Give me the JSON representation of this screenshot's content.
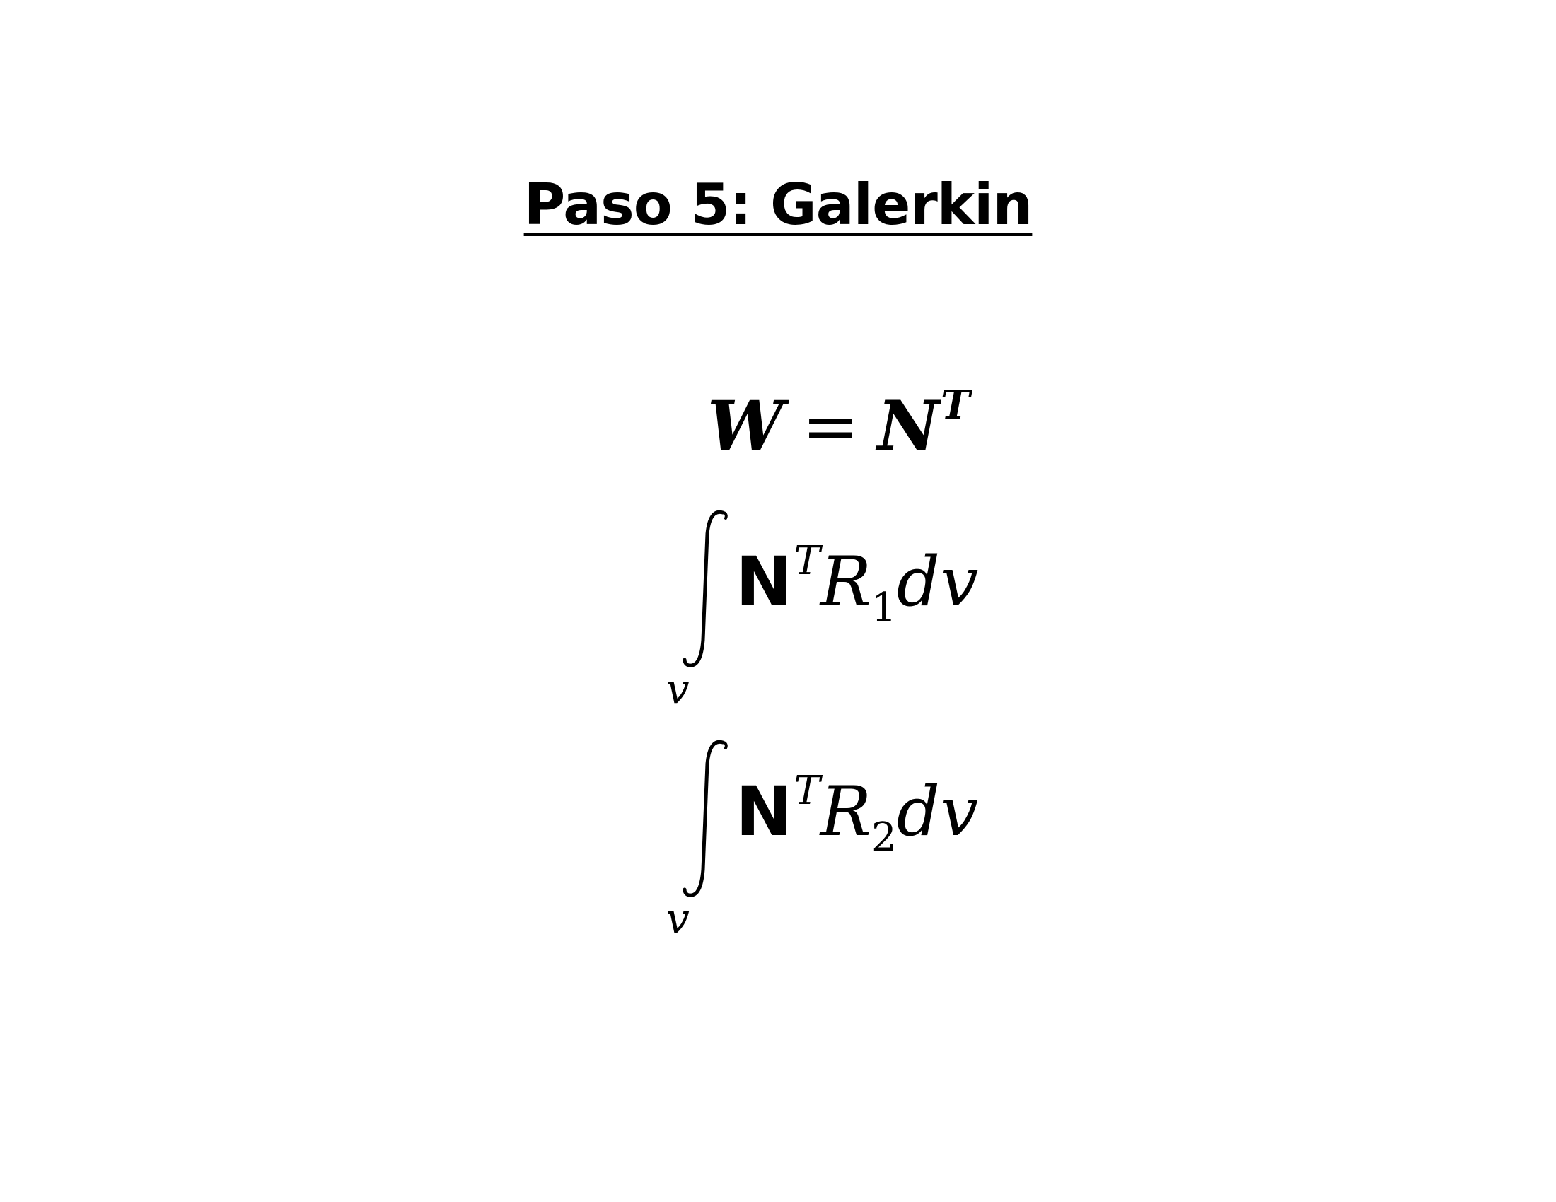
{
  "slide": {
    "title": "Paso 5: Galerkin"
  },
  "equations": {
    "weight": {
      "lhs": "W",
      "operator": "=",
      "rhs_base": "N",
      "rhs_sup": "T"
    },
    "integral_1": {
      "lower_limit": "v",
      "matrix": "N",
      "matrix_sup": "T",
      "residual": "R",
      "residual_sub": "1",
      "differential": "dv"
    },
    "integral_2": {
      "lower_limit": "v",
      "matrix": "N",
      "matrix_sup": "T",
      "residual": "R",
      "residual_sub": "2",
      "differential": "dv"
    }
  }
}
